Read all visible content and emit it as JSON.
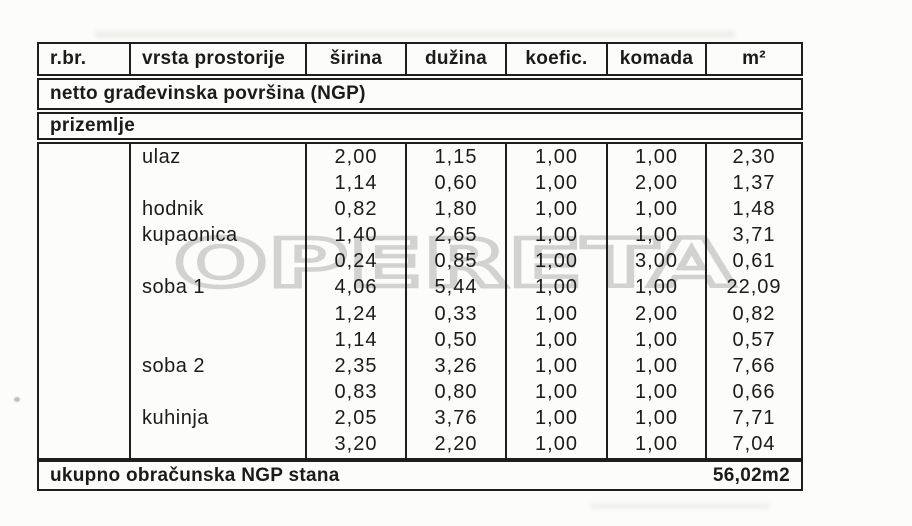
{
  "watermark_text": "OPERETA",
  "table": {
    "columns": [
      "r.br.",
      "vrsta prostorije",
      "širina",
      "dužina",
      "koefic.",
      "komada",
      "m²"
    ],
    "sections": [
      "netto građevinska površina (NGP)",
      "prizemlje"
    ],
    "rows": [
      {
        "rbr": "",
        "label": "ulaz",
        "sirina": "2,00",
        "duzina": "1,15",
        "koefic": "1,00",
        "komada": "1,00",
        "m2": "2,30"
      },
      {
        "rbr": "",
        "label": "",
        "sirina": "1,14",
        "duzina": "0,60",
        "koefic": "1,00",
        "komada": "2,00",
        "m2": "1,37"
      },
      {
        "rbr": "",
        "label": "hodnik",
        "sirina": "0,82",
        "duzina": "1,80",
        "koefic": "1,00",
        "komada": "1,00",
        "m2": "1,48"
      },
      {
        "rbr": "",
        "label": "kupaonica",
        "sirina": "1,40",
        "duzina": "2,65",
        "koefic": "1,00",
        "komada": "1,00",
        "m2": "3,71"
      },
      {
        "rbr": "",
        "label": "",
        "sirina": "0,24",
        "duzina": "0,85",
        "koefic": "1,00",
        "komada": "3,00",
        "m2": "0,61"
      },
      {
        "rbr": "",
        "label": "soba 1",
        "sirina": "4,06",
        "duzina": "5,44",
        "koefic": "1,00",
        "komada": "1,00",
        "m2": "22,09"
      },
      {
        "rbr": "",
        "label": "",
        "sirina": "1,24",
        "duzina": "0,33",
        "koefic": "1,00",
        "komada": "2,00",
        "m2": "0,82"
      },
      {
        "rbr": "",
        "label": "",
        "sirina": "1,14",
        "duzina": "0,50",
        "koefic": "1,00",
        "komada": "1,00",
        "m2": "0,57"
      },
      {
        "rbr": "",
        "label": "soba 2",
        "sirina": "2,35",
        "duzina": "3,26",
        "koefic": "1,00",
        "komada": "1,00",
        "m2": "7,66"
      },
      {
        "rbr": "",
        "label": "",
        "sirina": "0,83",
        "duzina": "0,80",
        "koefic": "1,00",
        "komada": "1,00",
        "m2": "0,66"
      },
      {
        "rbr": "",
        "label": "kuhinja",
        "sirina": "2,05",
        "duzina": "3,76",
        "koefic": "1,00",
        "komada": "1,00",
        "m2": "7,71"
      },
      {
        "rbr": "",
        "label": "",
        "sirina": "3,20",
        "duzina": "2,20",
        "koefic": "1,00",
        "komada": "1,00",
        "m2": "7,04"
      }
    ],
    "footer": {
      "label": "ukupno obračunska NGP stana",
      "total": "56,02m2"
    }
  },
  "colors": {
    "border": "#1e1e1e",
    "text": "#1b1b1b",
    "watermark_stroke": "#d2d2d0",
    "background": "#fcfcfb"
  }
}
